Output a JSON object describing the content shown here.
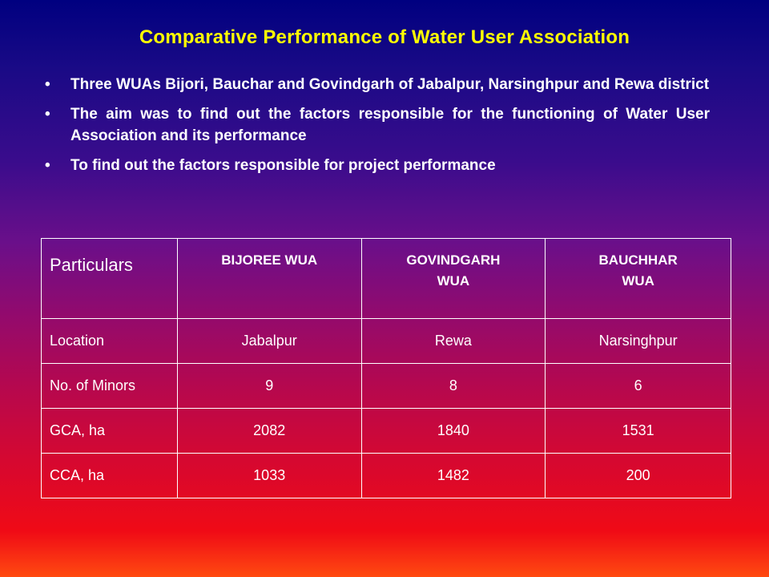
{
  "slide": {
    "title": "Comparative Performance of Water User Association",
    "bullets": [
      "Three WUAs Bijori, Bauchar and Govindgarh of Jabalpur, Narsinghpur and Rewa district",
      "The aim was to find out the factors responsible for the functioning of Water User Association and its performance",
      "To find out the factors responsible for project performance"
    ],
    "bullet_glyph": "•"
  },
  "table": {
    "headers": [
      "Particulars",
      "BIJOREE WUA",
      "GOVINDGARH WUA",
      "BAUCHHAR WUA"
    ],
    "rows": [
      [
        "Location",
        "Jabalpur",
        "Rewa",
        "Narsinghpur"
      ],
      [
        "No. of Minors",
        "9",
        "8",
        "6"
      ],
      [
        "GCA, ha",
        "2082",
        "1840",
        "1531"
      ],
      [
        "CCA, ha",
        "1033",
        "1482",
        "200"
      ]
    ]
  }
}
